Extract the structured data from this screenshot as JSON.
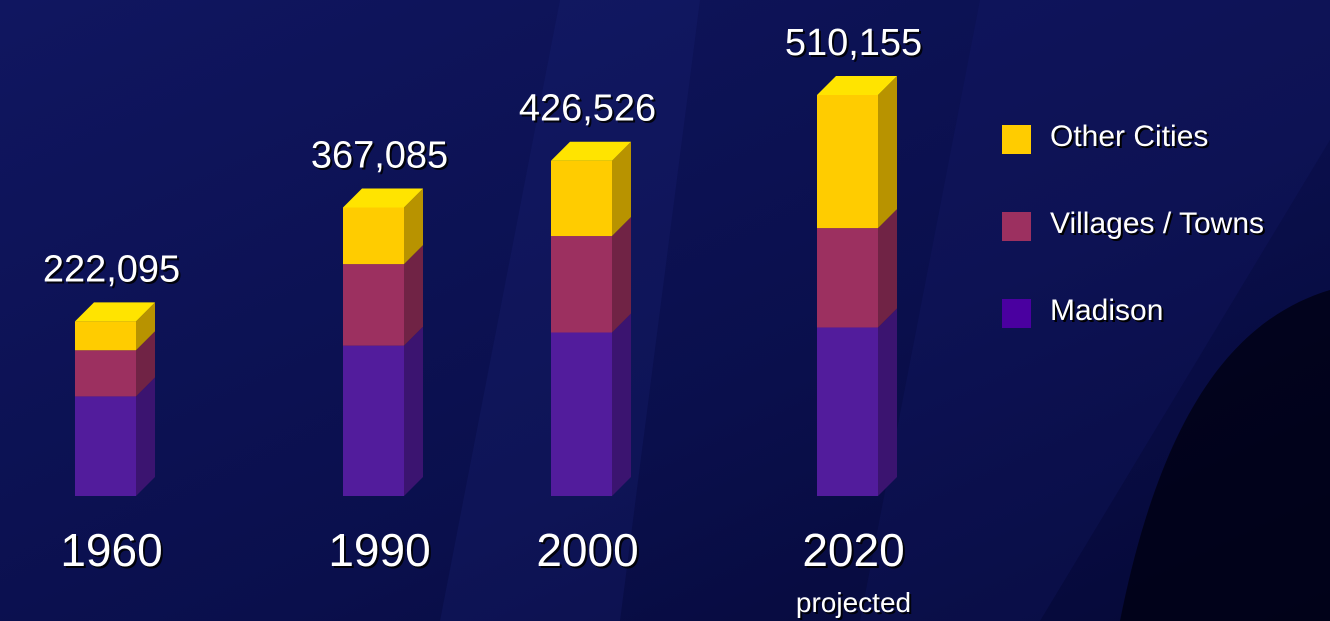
{
  "chart_data": {
    "type": "bar",
    "stacked": true,
    "style": "3d-columns",
    "categories": [
      "1960",
      "1990",
      "2000",
      "2020"
    ],
    "category_sublabels": [
      "",
      "",
      "",
      "projected"
    ],
    "totals": [
      "222,095",
      "367,085",
      "426,526",
      "510,155"
    ],
    "total_values": [
      222095,
      367085,
      426526,
      510155
    ],
    "series": [
      {
        "name": "Madison",
        "color": "#521c9c",
        "values": [
          126700,
          191300,
          208000,
          214400
        ]
      },
      {
        "name": "Villages / Towns",
        "color": "#9c3060",
        "values": [
          58700,
          103700,
          122700,
          126400
        ]
      },
      {
        "name": "Other Cities",
        "color": "#ffcc00",
        "values": [
          36695,
          72085,
          95826,
          169355
        ]
      }
    ],
    "ylim": [
      0,
      510155
    ],
    "grid": false,
    "legend": {
      "position": "right",
      "items": [
        {
          "label": "Other Cities",
          "color": "#ffcc00"
        },
        {
          "label": "Villages / Towns",
          "color": "#9c3060"
        },
        {
          "label": "Madison",
          "color": "#4a00a0"
        }
      ]
    }
  }
}
